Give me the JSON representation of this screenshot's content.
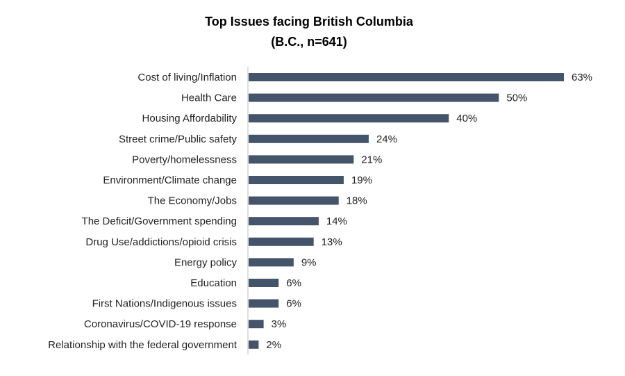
{
  "chart_data": {
    "type": "bar",
    "orientation": "horizontal",
    "title": "Top Issues facing British Columbia",
    "subtitle": "(B.C., n=641)",
    "categories": [
      "Cost of living/Inflation",
      "Health Care",
      "Housing Affordability",
      "Street crime/Public safety",
      "Poverty/homelessness",
      "Environment/Climate change",
      "The Economy/Jobs",
      "The Deficit/Government spending",
      "Drug Use/addictions/opioid crisis",
      "Energy policy",
      "Education",
      "First Nations/Indigenous issues",
      "Coronavirus/COVID-19 response",
      "Relationship with the federal government"
    ],
    "values": [
      63,
      50,
      40,
      24,
      21,
      19,
      18,
      14,
      13,
      9,
      6,
      6,
      3,
      2
    ],
    "value_labels": [
      "63%",
      "50%",
      "40%",
      "24%",
      "21%",
      "19%",
      "18%",
      "14%",
      "13%",
      "9%",
      "6%",
      "6%",
      "3%",
      "2%"
    ],
    "xlim": [
      0,
      63
    ],
    "grid": false,
    "legend": "none",
    "bar_color": "#44546a",
    "axis_color": "#bfbfbf"
  }
}
